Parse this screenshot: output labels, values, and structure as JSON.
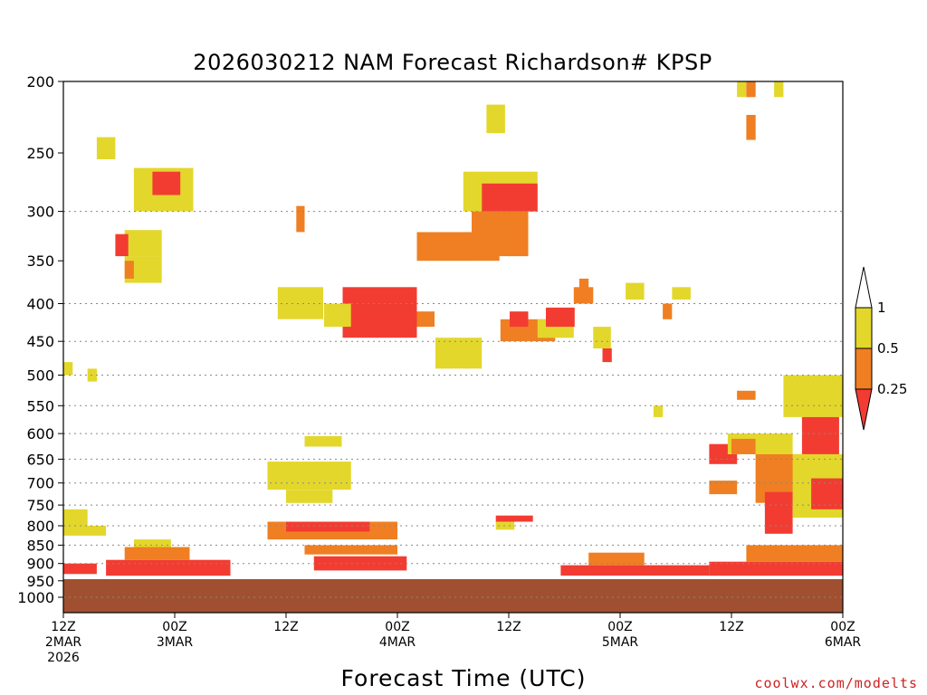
{
  "chart_data": {
    "type": "heatmap",
    "title": "2026030212 NAM Forecast Richardson# KPSP",
    "xlabel": "Forecast Time (UTC)",
    "ylabel": "",
    "y_scale": "log-pressure",
    "y_reversed": true,
    "ylim": [
      1000,
      200
    ],
    "xlim": [
      0,
      84
    ],
    "x_units": "hours from 12Z 2MAR 2026",
    "y_ticks": [
      200,
      250,
      300,
      350,
      400,
      450,
      500,
      550,
      600,
      650,
      700,
      750,
      800,
      850,
      900,
      950,
      1000
    ],
    "y_gridlines": [
      300,
      400,
      450,
      500,
      550,
      600,
      650,
      700,
      750,
      800,
      850,
      900,
      1000
    ],
    "x_ticks": [
      {
        "hour": 0,
        "line1": "12Z",
        "line2": "2MAR",
        "line3": "2026"
      },
      {
        "hour": 12,
        "line1": "00Z",
        "line2": "3MAR",
        "line3": ""
      },
      {
        "hour": 24,
        "line1": "12Z",
        "line2": "",
        "line3": ""
      },
      {
        "hour": 36,
        "line1": "00Z",
        "line2": "4MAR",
        "line3": ""
      },
      {
        "hour": 48,
        "line1": "12Z",
        "line2": "",
        "line3": ""
      },
      {
        "hour": 60,
        "line1": "00Z",
        "line2": "5MAR",
        "line3": ""
      },
      {
        "hour": 72,
        "line1": "12Z",
        "line2": "",
        "line3": ""
      },
      {
        "hour": 84,
        "line1": "00Z",
        "line2": "6MAR",
        "line3": ""
      }
    ],
    "legend": {
      "placement": "right",
      "labels": [
        "1",
        "0.5",
        "0.25"
      ],
      "colors": {
        "top": "#ffffff",
        "high": "#e3d72c",
        "mid": "#ef7f22",
        "low": "#f23c32"
      }
    },
    "ground": {
      "below_hpa": 945,
      "color": "#a05030"
    },
    "regions": [
      {
        "x0": 3.6,
        "x1": 5.6,
        "p0": 255,
        "p1": 238,
        "class": "high"
      },
      {
        "x0": 7.6,
        "x1": 14,
        "p0": 300,
        "p1": 262,
        "class": "high"
      },
      {
        "x0": 9.6,
        "x1": 12.6,
        "p0": 285,
        "p1": 265,
        "class": "low"
      },
      {
        "x0": 6.6,
        "x1": 10.6,
        "p0": 345,
        "p1": 318,
        "class": "high"
      },
      {
        "x0": 5.6,
        "x1": 7,
        "p0": 345,
        "p1": 322,
        "class": "low"
      },
      {
        "x0": 6.6,
        "x1": 10.6,
        "p0": 375,
        "p1": 345,
        "class": "high"
      },
      {
        "x0": 6.6,
        "x1": 7.6,
        "p0": 370,
        "p1": 350,
        "class": "mid"
      },
      {
        "x0": 23.1,
        "x1": 28,
        "p0": 420,
        "p1": 380,
        "class": "high"
      },
      {
        "x0": 25.1,
        "x1": 26,
        "p0": 320,
        "p1": 295,
        "class": "mid"
      },
      {
        "x0": 30.1,
        "x1": 38.1,
        "p0": 445,
        "p1": 380,
        "class": "low"
      },
      {
        "x0": 28.1,
        "x1": 31,
        "p0": 430,
        "p1": 400,
        "class": "high"
      },
      {
        "x0": 38.1,
        "x1": 40,
        "p0": 430,
        "p1": 410,
        "class": "mid"
      },
      {
        "x0": 40.1,
        "x1": 45.1,
        "p0": 490,
        "p1": 445,
        "class": "high"
      },
      {
        "x0": 38.1,
        "x1": 47,
        "p0": 350,
        "p1": 320,
        "class": "mid"
      },
      {
        "x0": 43.1,
        "x1": 51.1,
        "p0": 300,
        "p1": 265,
        "class": "high"
      },
      {
        "x0": 45.1,
        "x1": 51.1,
        "p0": 300,
        "p1": 275,
        "class": "low"
      },
      {
        "x0": 44,
        "x1": 50.1,
        "p0": 345,
        "p1": 300,
        "class": "mid"
      },
      {
        "x0": 47.1,
        "x1": 53,
        "p0": 450,
        "p1": 420,
        "class": "mid"
      },
      {
        "x0": 48.1,
        "x1": 50.1,
        "p0": 430,
        "p1": 410,
        "class": "low"
      },
      {
        "x0": 51.1,
        "x1": 55,
        "p0": 445,
        "p1": 420,
        "class": "high"
      },
      {
        "x0": 52,
        "x1": 55.1,
        "p0": 430,
        "p1": 405,
        "class": "low"
      },
      {
        "x0": 55,
        "x1": 57.1,
        "p0": 400,
        "p1": 380,
        "class": "mid"
      },
      {
        "x0": 57.1,
        "x1": 59,
        "p0": 460,
        "p1": 430,
        "class": "high"
      },
      {
        "x0": 58.1,
        "x1": 59.1,
        "p0": 480,
        "p1": 460,
        "class": "low"
      },
      {
        "x0": 22,
        "x1": 31,
        "p0": 715,
        "p1": 655,
        "class": "high"
      },
      {
        "x0": 24,
        "x1": 29,
        "p0": 745,
        "p1": 715,
        "class": "high"
      },
      {
        "x0": 26,
        "x1": 30,
        "p0": 625,
        "p1": 605,
        "class": "high"
      },
      {
        "x0": 22,
        "x1": 36,
        "p0": 835,
        "p1": 790,
        "class": "mid"
      },
      {
        "x0": 24,
        "x1": 33,
        "p0": 815,
        "p1": 790,
        "class": "low"
      },
      {
        "x0": 27,
        "x1": 37,
        "p0": 920,
        "p1": 880,
        "class": "low"
      },
      {
        "x0": 26,
        "x1": 36,
        "p0": 875,
        "p1": 850,
        "class": "mid"
      },
      {
        "x0": 77.6,
        "x1": 84,
        "p0": 570,
        "p1": 500,
        "class": "high"
      },
      {
        "x0": 79.6,
        "x1": 83.6,
        "p0": 650,
        "p1": 570,
        "class": "low"
      },
      {
        "x0": 74.6,
        "x1": 80.6,
        "p0": 745,
        "p1": 640,
        "class": "mid"
      },
      {
        "x0": 75.6,
        "x1": 78.6,
        "p0": 820,
        "p1": 720,
        "class": "low"
      },
      {
        "x0": 78.6,
        "x1": 84,
        "p0": 780,
        "p1": 640,
        "class": "high"
      },
      {
        "x0": 80.6,
        "x1": 84,
        "p0": 760,
        "p1": 690,
        "class": "low"
      },
      {
        "x0": 69.6,
        "x1": 72.6,
        "p0": 660,
        "p1": 620,
        "class": "low"
      },
      {
        "x0": 69.6,
        "x1": 72.6,
        "p0": 725,
        "p1": 695,
        "class": "mid"
      },
      {
        "x0": 71.6,
        "x1": 78.6,
        "p0": 640,
        "p1": 600,
        "class": "high"
      },
      {
        "x0": 72,
        "x1": 74.6,
        "p0": 640,
        "p1": 610,
        "class": "mid"
      },
      {
        "x0": 0,
        "x1": 2.6,
        "p0": 800,
        "p1": 760,
        "class": "high"
      },
      {
        "x0": 0,
        "x1": 4.6,
        "p0": 825,
        "p1": 800,
        "class": "high"
      },
      {
        "x0": 0,
        "x1": 3.6,
        "p0": 930,
        "p1": 900,
        "class": "low"
      },
      {
        "x0": 4.6,
        "x1": 18,
        "p0": 935,
        "p1": 890,
        "class": "low"
      },
      {
        "x0": 6.6,
        "x1": 13.6,
        "p0": 890,
        "p1": 855,
        "class": "mid"
      },
      {
        "x0": 7.6,
        "x1": 11.6,
        "p0": 855,
        "p1": 835,
        "class": "high"
      },
      {
        "x0": 53.6,
        "x1": 69.6,
        "p0": 935,
        "p1": 905,
        "class": "low"
      },
      {
        "x0": 56.6,
        "x1": 62.6,
        "p0": 905,
        "p1": 870,
        "class": "mid"
      },
      {
        "x0": 69.6,
        "x1": 84,
        "p0": 935,
        "p1": 895,
        "class": "low"
      },
      {
        "x0": 73.6,
        "x1": 84,
        "p0": 895,
        "p1": 850,
        "class": "mid"
      },
      {
        "x0": 46.6,
        "x1": 50.6,
        "p0": 790,
        "p1": 775,
        "class": "low"
      },
      {
        "x0": 46.6,
        "x1": 48.6,
        "p0": 810,
        "p1": 790,
        "class": "high"
      },
      {
        "x0": 45.6,
        "x1": 47.6,
        "p0": 235,
        "p1": 215,
        "class": "high"
      },
      {
        "x0": 72.6,
        "x1": 73.6,
        "p0": 210,
        "p1": 200,
        "class": "high"
      },
      {
        "x0": 73.6,
        "x1": 74.6,
        "p0": 210,
        "p1": 200,
        "class": "mid"
      },
      {
        "x0": 73.6,
        "x1": 74.6,
        "p0": 240,
        "p1": 222,
        "class": "mid"
      },
      {
        "x0": 76.6,
        "x1": 77.6,
        "p0": 210,
        "p1": 200,
        "class": "high"
      },
      {
        "x0": 55.6,
        "x1": 56.6,
        "p0": 395,
        "p1": 370,
        "class": "mid"
      },
      {
        "x0": 65.6,
        "x1": 67.6,
        "p0": 395,
        "p1": 380,
        "class": "high"
      },
      {
        "x0": 64.6,
        "x1": 65.6,
        "p0": 420,
        "p1": 400,
        "class": "mid"
      },
      {
        "x0": 60.6,
        "x1": 62.6,
        "p0": 395,
        "p1": 375,
        "class": "high"
      },
      {
        "x0": 63.6,
        "x1": 64.6,
        "p0": 570,
        "p1": 550,
        "class": "high"
      },
      {
        "x0": 72.6,
        "x1": 74.6,
        "p0": 540,
        "p1": 525,
        "class": "mid"
      },
      {
        "x0": 0,
        "x1": 1,
        "p0": 500,
        "p1": 480,
        "class": "high"
      },
      {
        "x0": 2.6,
        "x1": 3.6,
        "p0": 510,
        "p1": 490,
        "class": "high"
      }
    ]
  }
}
